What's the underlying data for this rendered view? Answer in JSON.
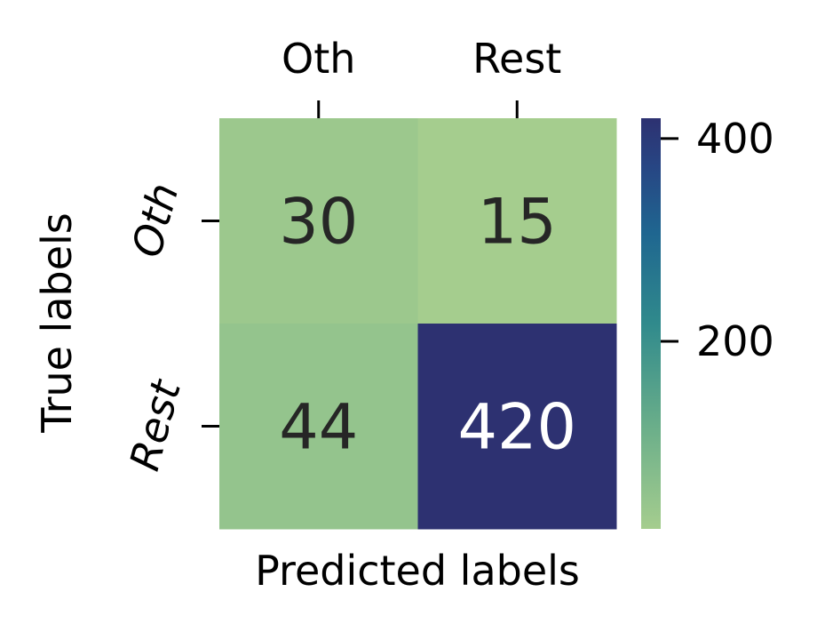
{
  "chart_data": {
    "type": "heatmap",
    "title": "",
    "xlabel": "Predicted labels",
    "ylabel": "True labels",
    "x_categories": [
      "Oth",
      "Rest"
    ],
    "y_categories": [
      "Oth",
      "Rest"
    ],
    "x_tick_position": "top",
    "values": [
      [
        30,
        15
      ],
      [
        44,
        420
      ]
    ],
    "cell_labels": [
      [
        "30",
        "15"
      ],
      [
        "44",
        "420"
      ]
    ],
    "colormap": "crest",
    "colorbar": {
      "ticks": [
        200,
        400
      ],
      "tick_labels": [
        "200",
        "400"
      ],
      "range": [
        15,
        420
      ]
    },
    "colors": {
      "low": "#a5cd8e",
      "high": "#2d3171",
      "text_dark": "#262626",
      "text_light": "#ffffff"
    }
  }
}
